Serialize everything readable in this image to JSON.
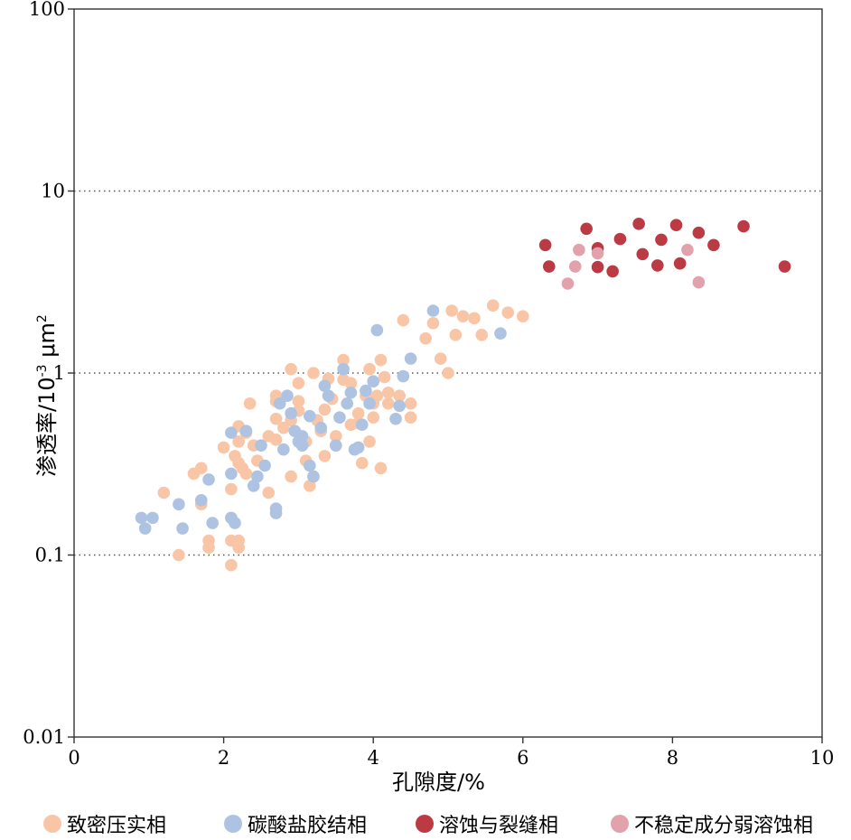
{
  "chart_data": {
    "type": "scatter",
    "xlabel": "孔隙度/%",
    "ylabel": {
      "prefix": "渗透率/10",
      "sup1": "-3",
      "mid": " μm",
      "sup2": "2"
    },
    "xlim": [
      0,
      10
    ],
    "ylim": [
      0.01,
      100
    ],
    "yscale": "log",
    "x_ticks": [
      "0",
      "2",
      "4",
      "6",
      "8",
      "10"
    ],
    "y_ticks": [
      "0.01",
      "0.1",
      "1",
      "10",
      "100"
    ],
    "grid": "horizontal dotted at 0.1, 1, 10",
    "legend_position": "bottom",
    "series": [
      {
        "name": "致密压实相",
        "color": "#f8c6a6",
        "points": [
          [
            1.2,
            0.22
          ],
          [
            1.4,
            0.1
          ],
          [
            1.6,
            0.28
          ],
          [
            1.7,
            0.3
          ],
          [
            1.7,
            0.19
          ],
          [
            1.8,
            0.12
          ],
          [
            1.8,
            0.11
          ],
          [
            2.0,
            0.39
          ],
          [
            2.1,
            0.23
          ],
          [
            2.1,
            0.16
          ],
          [
            2.1,
            0.12
          ],
          [
            2.1,
            0.088
          ],
          [
            2.15,
            0.35
          ],
          [
            2.2,
            0.51
          ],
          [
            2.2,
            0.42
          ],
          [
            2.2,
            0.32
          ],
          [
            2.2,
            0.12
          ],
          [
            2.2,
            0.11
          ],
          [
            2.25,
            0.3
          ],
          [
            2.3,
            0.47
          ],
          [
            2.3,
            0.28
          ],
          [
            2.35,
            0.68
          ],
          [
            2.4,
            0.4
          ],
          [
            2.45,
            0.33
          ],
          [
            2.6,
            0.45
          ],
          [
            2.6,
            0.22
          ],
          [
            2.7,
            0.75
          ],
          [
            2.7,
            0.7
          ],
          [
            2.7,
            0.56
          ],
          [
            2.7,
            0.43
          ],
          [
            2.8,
            0.5
          ],
          [
            2.9,
            0.55
          ],
          [
            2.9,
            0.27
          ],
          [
            2.9,
            1.05
          ],
          [
            3.0,
            0.88
          ],
          [
            3.0,
            0.7
          ],
          [
            3.0,
            0.62
          ],
          [
            3.1,
            0.42
          ],
          [
            3.1,
            0.33
          ],
          [
            3.15,
            0.24
          ],
          [
            3.2,
            0.27
          ],
          [
            3.2,
            1.0
          ],
          [
            3.25,
            0.55
          ],
          [
            3.3,
            0.48
          ],
          [
            3.35,
            0.63
          ],
          [
            3.35,
            0.35
          ],
          [
            3.4,
            0.93
          ],
          [
            3.45,
            0.72
          ],
          [
            3.5,
            0.45
          ],
          [
            3.5,
            0.4
          ],
          [
            3.6,
            1.18
          ],
          [
            3.6,
            0.92
          ],
          [
            3.7,
            0.88
          ],
          [
            3.7,
            0.52
          ],
          [
            3.8,
            0.6
          ],
          [
            3.8,
            0.53
          ],
          [
            3.85,
            0.32
          ],
          [
            3.9,
            0.75
          ],
          [
            3.95,
            1.05
          ],
          [
            3.95,
            0.42
          ],
          [
            4.0,
            0.68
          ],
          [
            4.0,
            0.57
          ],
          [
            4.05,
            0.75
          ],
          [
            4.1,
            1.18
          ],
          [
            4.1,
            0.3
          ],
          [
            4.15,
            0.95
          ],
          [
            4.2,
            0.78
          ],
          [
            4.2,
            0.68
          ],
          [
            4.35,
            0.75
          ],
          [
            4.4,
            1.95
          ],
          [
            4.5,
            0.57
          ],
          [
            4.5,
            0.68
          ],
          [
            4.7,
            1.55
          ],
          [
            4.8,
            1.88
          ],
          [
            4.9,
            1.2
          ],
          [
            5.0,
            1.0
          ],
          [
            5.05,
            2.2
          ],
          [
            5.1,
            1.62
          ],
          [
            5.2,
            2.05
          ],
          [
            5.35,
            2.0
          ],
          [
            5.45,
            1.62
          ],
          [
            5.6,
            2.35
          ],
          [
            5.8,
            2.15
          ],
          [
            6.0,
            2.05
          ]
        ]
      },
      {
        "name": "碳酸盐胶结相",
        "color": "#adc3e1",
        "points": [
          [
            0.9,
            0.16
          ],
          [
            0.95,
            0.14
          ],
          [
            1.05,
            0.16
          ],
          [
            1.4,
            0.19
          ],
          [
            1.45,
            0.14
          ],
          [
            1.7,
            0.2
          ],
          [
            1.8,
            0.26
          ],
          [
            1.85,
            0.15
          ],
          [
            2.1,
            0.47
          ],
          [
            2.1,
            0.28
          ],
          [
            2.1,
            0.16
          ],
          [
            2.15,
            0.15
          ],
          [
            2.3,
            0.48
          ],
          [
            2.4,
            0.24
          ],
          [
            2.45,
            0.27
          ],
          [
            2.5,
            0.4
          ],
          [
            2.55,
            0.31
          ],
          [
            2.7,
            0.18
          ],
          [
            2.7,
            0.17
          ],
          [
            2.75,
            0.68
          ],
          [
            2.8,
            0.38
          ],
          [
            2.85,
            0.75
          ],
          [
            2.9,
            0.6
          ],
          [
            2.95,
            0.48
          ],
          [
            3.0,
            0.42
          ],
          [
            3.05,
            0.45
          ],
          [
            3.05,
            0.4
          ],
          [
            3.15,
            0.58
          ],
          [
            3.15,
            0.31
          ],
          [
            3.2,
            0.27
          ],
          [
            3.3,
            0.5
          ],
          [
            3.35,
            0.85
          ],
          [
            3.4,
            0.75
          ],
          [
            3.5,
            0.4
          ],
          [
            3.55,
            0.57
          ],
          [
            3.6,
            1.05
          ],
          [
            3.65,
            0.68
          ],
          [
            3.7,
            0.78
          ],
          [
            3.75,
            0.38
          ],
          [
            3.8,
            0.39
          ],
          [
            3.85,
            0.52
          ],
          [
            3.9,
            0.8
          ],
          [
            3.95,
            0.68
          ],
          [
            4.0,
            0.9
          ],
          [
            4.05,
            1.72
          ],
          [
            4.3,
            0.56
          ],
          [
            4.35,
            0.66
          ],
          [
            4.4,
            0.96
          ],
          [
            4.5,
            1.2
          ],
          [
            4.8,
            2.2
          ],
          [
            5.7,
            1.65
          ]
        ]
      },
      {
        "name": "溶蚀与裂缝相",
        "color": "#bb3a44",
        "points": [
          [
            6.3,
            5.05
          ],
          [
            6.35,
            3.85
          ],
          [
            6.85,
            6.2
          ],
          [
            7.0,
            4.85
          ],
          [
            7.0,
            3.82
          ],
          [
            7.2,
            3.62
          ],
          [
            7.3,
            5.45
          ],
          [
            7.55,
            6.6
          ],
          [
            7.6,
            4.5
          ],
          [
            7.8,
            3.9
          ],
          [
            7.85,
            5.4
          ],
          [
            8.05,
            6.5
          ],
          [
            8.1,
            4.0
          ],
          [
            8.35,
            5.9
          ],
          [
            8.55,
            5.05
          ],
          [
            8.95,
            6.4
          ],
          [
            9.5,
            3.85
          ]
        ]
      },
      {
        "name": "不稳定成分弱溶蚀相",
        "color": "#e1a2ac",
        "points": [
          [
            6.6,
            3.1
          ],
          [
            6.7,
            3.85
          ],
          [
            6.75,
            4.75
          ],
          [
            7.0,
            4.55
          ],
          [
            8.2,
            4.75
          ],
          [
            8.35,
            3.15
          ]
        ]
      }
    ]
  }
}
